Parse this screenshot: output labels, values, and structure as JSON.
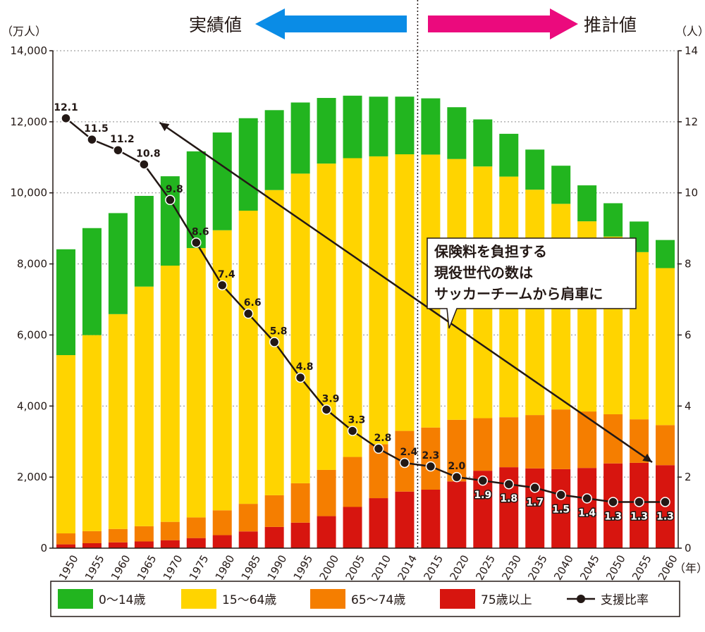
{
  "header": {
    "actual_label": "実績値",
    "projection_label": "推計値"
  },
  "units": {
    "left": "（万人）",
    "right": "（人）",
    "x": "（年）"
  },
  "annotation": {
    "lines": [
      "保険料を負担する",
      "現役世代の数は",
      "サッカーチームから肩車に"
    ]
  },
  "colors": {
    "age_0_14": "#22b51f",
    "age_15_64": "#ffd400",
    "age_65_74": "#f57e00",
    "age_75_plus": "#d7150f",
    "ratio": "#231815",
    "arrow_actual": "#0a8ce6",
    "arrow_projection": "#eb0a7d"
  },
  "chart_data": {
    "type": "bar",
    "stacked": true,
    "categories": [
      "1950",
      "1955",
      "1960",
      "1965",
      "1970",
      "1975",
      "1980",
      "1985",
      "1990",
      "1995",
      "2000",
      "2005",
      "2010",
      "2014",
      "2015",
      "2020",
      "2025",
      "2030",
      "2035",
      "2040",
      "2045",
      "2050",
      "2055",
      "2060"
    ],
    "series": [
      {
        "name": "75歳以上",
        "key": "age_75_plus",
        "values": [
          107,
          139,
          163,
          189,
          224,
          284,
          366,
          471,
          597,
          717,
          901,
          1160,
          1407,
          1592,
          1646,
          1879,
          2179,
          2278,
          2245,
          2223,
          2257,
          2385,
          2401,
          2336
        ]
      },
      {
        "name": "65〜74歳",
        "key": "age_65_74",
        "values": [
          309,
          340,
          377,
          429,
          516,
          581,
          699,
          776,
          892,
          1109,
          1301,
          1407,
          1517,
          1708,
          1749,
          1733,
          1479,
          1407,
          1501,
          1681,
          1589,
          1383,
          1225,
          1128
        ]
      },
      {
        "name": "15〜64歳",
        "key": "age_15_64",
        "values": [
          5017,
          5517,
          6047,
          6744,
          7212,
          7581,
          7883,
          8251,
          8590,
          8716,
          8622,
          8409,
          8103,
          7785,
          7682,
          7341,
          7085,
          6773,
          6343,
          5787,
          5353,
          5001,
          4706,
          4418
        ]
      },
      {
        "name": "0〜14歳",
        "key": "age_0_14",
        "values": [
          2979,
          3012,
          2843,
          2553,
          2515,
          2722,
          2751,
          2603,
          2249,
          2001,
          1847,
          1759,
          1680,
          1623,
          1583,
          1457,
          1324,
          1204,
          1129,
          1073,
          1012,
          939,
          861,
          791
        ]
      }
    ],
    "support_ratio": {
      "name": "支援比率",
      "x": [
        "1950",
        "1955",
        "1960",
        "1965",
        "1970",
        "1975",
        "1980",
        "1985",
        "1990",
        "1995",
        "2000",
        "2005",
        "2010",
        "2014",
        "2015",
        "2020",
        "2025",
        "2030",
        "2035",
        "2040",
        "2045",
        "2050",
        "2055",
        "2060"
      ],
      "values": [
        12.1,
        11.5,
        11.2,
        10.8,
        9.8,
        8.6,
        7.4,
        6.6,
        5.8,
        4.8,
        3.9,
        3.3,
        2.8,
        2.4,
        2.3,
        2.0,
        1.9,
        1.8,
        1.7,
        1.5,
        1.4,
        1.3,
        1.3,
        1.3
      ],
      "labels": [
        "12.1",
        "11.5",
        "11.2",
        "10.8",
        "9.8",
        "8.6",
        "7.4",
        "6.6",
        "5.8",
        "4.8",
        "3.9",
        "3.3",
        "2.8",
        "2.4",
        "2.3",
        "2.0",
        "1.9",
        "1.8",
        "1.7",
        "1.5",
        "1.4",
        "1.3",
        "1.3",
        "1.3"
      ]
    },
    "y_left": {
      "ticks": [
        "0",
        "2,000",
        "4,000",
        "6,000",
        "8,000",
        "10,000",
        "12,000",
        "14,000"
      ],
      "ylim": [
        0,
        14000
      ]
    },
    "y_right": {
      "ticks": [
        "0",
        "2",
        "4",
        "6",
        "8",
        "10",
        "12",
        "14"
      ],
      "ylim": [
        0,
        14
      ]
    },
    "grid": "horizontal dotted",
    "divider_after": "2014",
    "legend": {
      "placement": "bottom",
      "items": [
        {
          "label": "0〜14歳",
          "key": "age_0_14",
          "kind": "box"
        },
        {
          "label": "15〜64歳",
          "key": "age_15_64",
          "kind": "box"
        },
        {
          "label": "65〜74歳",
          "key": "age_65_74",
          "kind": "box"
        },
        {
          "label": "75歳以上",
          "key": "age_75_plus",
          "kind": "box"
        },
        {
          "label": "支援比率",
          "key": "ratio",
          "kind": "line"
        }
      ]
    }
  }
}
